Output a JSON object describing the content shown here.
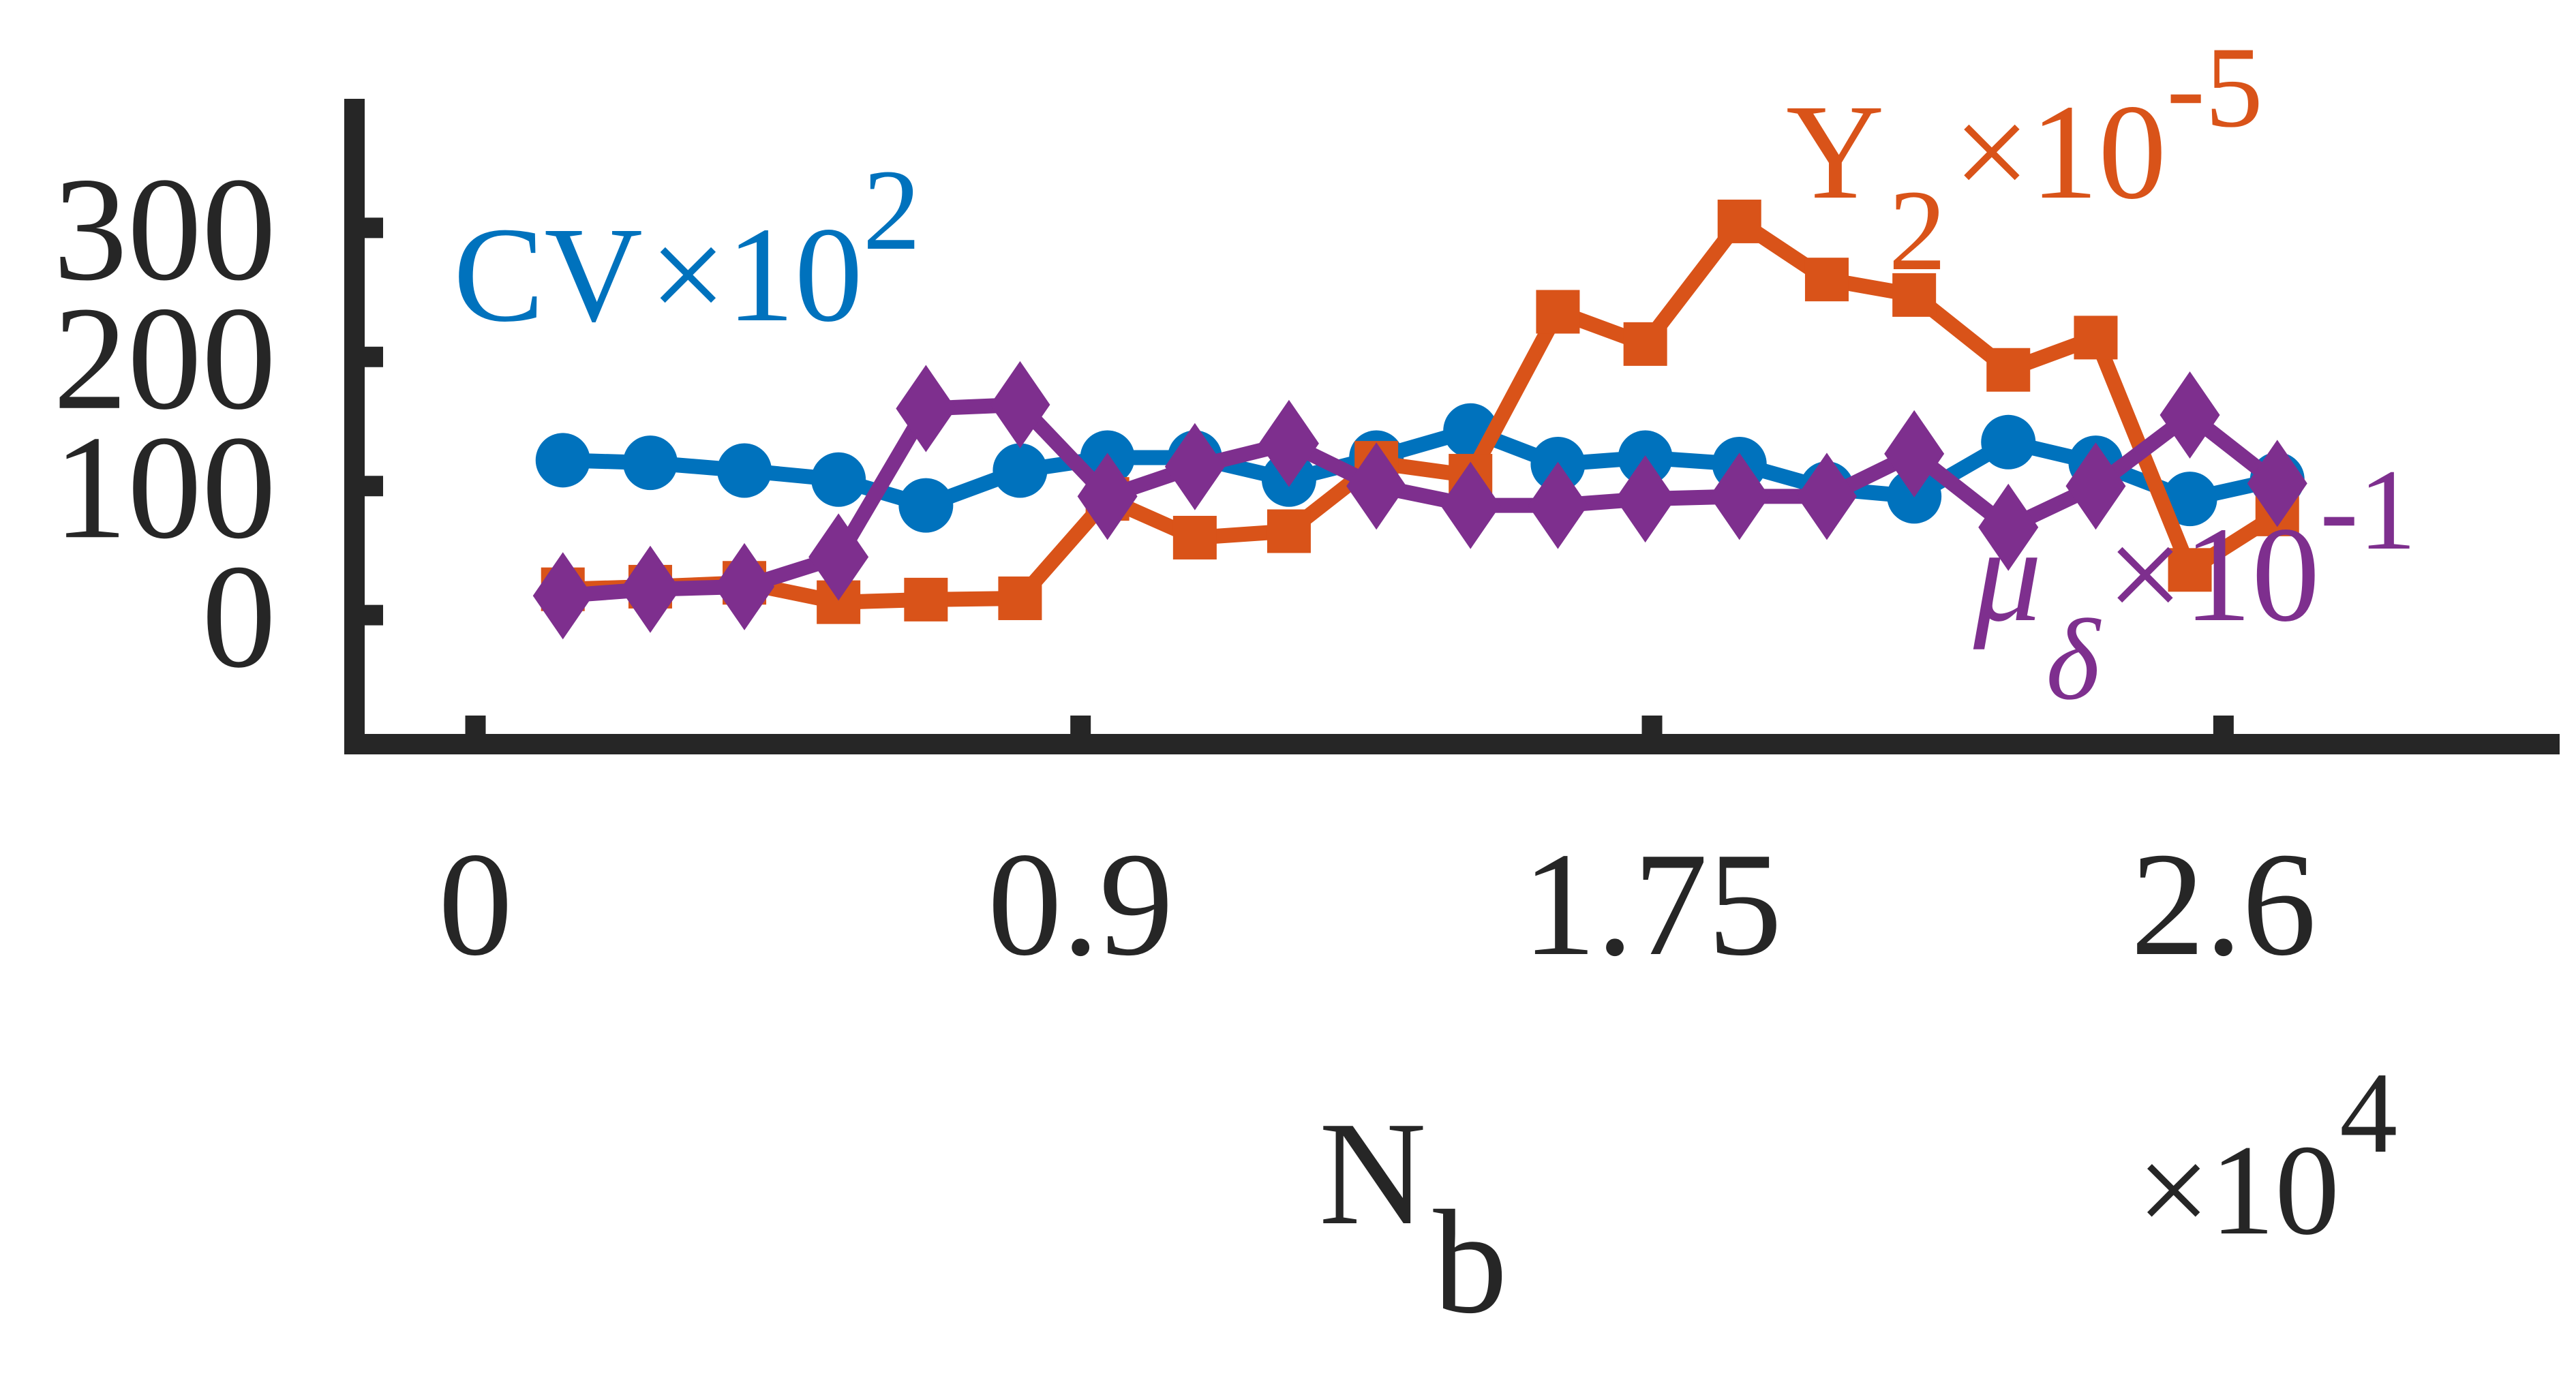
{
  "chart_data": {
    "type": "line",
    "x_tick_labels": [
      "0",
      "0.9",
      "1.75",
      "2.6"
    ],
    "x_tick_values": [
      0,
      0.9,
      1.75,
      2.6
    ],
    "y_tick_labels": [
      "0",
      "100",
      "200",
      "300"
    ],
    "y_tick_values": [
      0,
      100,
      200,
      300
    ],
    "xlim": [
      -0.18,
      3.1
    ],
    "ylim": [
      -100,
      400
    ],
    "xlabel": {
      "base": "N",
      "sub": "b"
    },
    "x_multiplier": {
      "prefix": "×10",
      "exp": "4"
    },
    "grid": false,
    "x": [
      0.13,
      0.26,
      0.4,
      0.54,
      0.67,
      0.81,
      0.94,
      1.07,
      1.21,
      1.34,
      1.48,
      1.61,
      1.74,
      1.88,
      2.01,
      2.14,
      2.28,
      2.41,
      2.55,
      2.68
    ],
    "series": [
      {
        "key": "cv",
        "label": {
          "base": "CV",
          "prefix": "×10",
          "exp": "2"
        },
        "color": "#0072BD",
        "marker": "circle",
        "values": [
          120,
          118,
          112,
          105,
          85,
          112,
          122,
          122,
          105,
          122,
          143,
          117,
          122,
          117,
          98,
          92,
          134,
          118,
          90,
          105
        ]
      },
      {
        "key": "y2",
        "label": {
          "base": "Y",
          "sub": "2",
          "prefix": "×10",
          "exp": "-5"
        },
        "color": "#D95319",
        "marker": "square",
        "values": [
          20,
          22,
          25,
          10,
          12,
          13,
          90,
          60,
          65,
          118,
          108,
          235,
          210,
          305,
          260,
          248,
          190,
          215,
          35,
          78
        ]
      },
      {
        "key": "mu",
        "label": {
          "base": "μ",
          "sub": "δ",
          "prefix": "×10",
          "exp": "-1"
        },
        "color": "#7E2F8E",
        "marker": "diamond",
        "values": [
          15,
          20,
          22,
          45,
          160,
          163,
          92,
          115,
          133,
          100,
          85,
          85,
          90,
          92,
          92,
          125,
          68,
          100,
          155,
          102
        ]
      }
    ]
  }
}
